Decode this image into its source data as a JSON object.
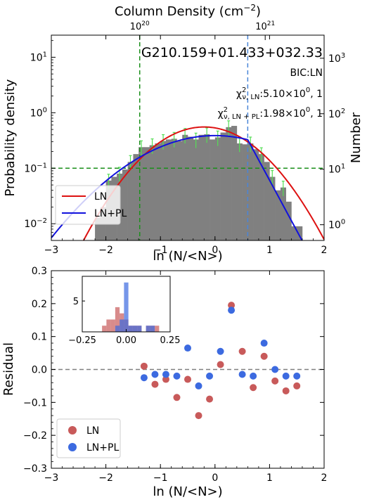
{
  "chart_data": [
    {
      "type": "histogram",
      "title": "G210.159+01.433+032.33",
      "xlabel": "ln (N/<N>)",
      "ylabel_left": "Probability density",
      "ylabel_right": "Number",
      "top_axis_label": "Column Density (cm$^{-2}$)",
      "top_ticks": [
        {
          "label": "10",
          "exp": "20",
          "x": -1.38
        },
        {
          "label": "10",
          "exp": "21",
          "x": 0.92
        }
      ],
      "xlim": [
        -3,
        2
      ],
      "ylim": [
        0.005,
        25
      ],
      "ylog": true,
      "x_ticks": [
        -3,
        -2,
        -1,
        0,
        1,
        2
      ],
      "x_tick_labels": [
        "−3",
        "−2",
        "−1",
        "0",
        "1",
        "2"
      ],
      "y_ticks_left": [
        {
          "v": 0.01,
          "base": "10",
          "exp": "−2"
        },
        {
          "v": 0.1,
          "base": "10",
          "exp": "−1"
        },
        {
          "v": 1,
          "base": "10",
          "exp": "0"
        },
        {
          "v": 10,
          "base": "10",
          "exp": "1"
        }
      ],
      "y_ticks_right": [
        {
          "v": 0.0096,
          "base": "10",
          "exp": "0"
        },
        {
          "v": 0.096,
          "base": "10",
          "exp": "1"
        },
        {
          "v": 0.96,
          "base": "10",
          "exp": "2"
        },
        {
          "v": 9.6,
          "base": "10",
          "exp": "3"
        }
      ],
      "bin_width": 0.1,
      "histogram": [
        {
          "x": -2.15,
          "y": 0.013
        },
        {
          "x": -2.05,
          "y": 0.02
        },
        {
          "x": -1.95,
          "y": 0.06
        },
        {
          "x": -1.85,
          "y": 0.07
        },
        {
          "x": -1.75,
          "y": 0.08
        },
        {
          "x": -1.65,
          "y": 0.095
        },
        {
          "x": -1.55,
          "y": 0.13
        },
        {
          "x": -1.45,
          "y": 0.18
        },
        {
          "x": -1.35,
          "y": 0.24
        },
        {
          "x": -1.25,
          "y": 0.24
        },
        {
          "x": -1.15,
          "y": 0.26
        },
        {
          "x": -1.05,
          "y": 0.28
        },
        {
          "x": -0.95,
          "y": 0.31
        },
        {
          "x": -0.85,
          "y": 0.33
        },
        {
          "x": -0.75,
          "y": 0.34
        },
        {
          "x": -0.65,
          "y": 0.31
        },
        {
          "x": -0.55,
          "y": 0.4
        },
        {
          "x": -0.45,
          "y": 0.37
        },
        {
          "x": -0.35,
          "y": 0.33
        },
        {
          "x": -0.25,
          "y": 0.4
        },
        {
          "x": -0.15,
          "y": 0.41
        },
        {
          "x": -0.05,
          "y": 0.33
        },
        {
          "x": 0.05,
          "y": 0.36
        },
        {
          "x": 0.15,
          "y": 0.44
        },
        {
          "x": 0.25,
          "y": 0.55
        },
        {
          "x": 0.35,
          "y": 0.58
        },
        {
          "x": 0.45,
          "y": 0.28
        },
        {
          "x": 0.55,
          "y": 0.27
        },
        {
          "x": 0.65,
          "y": 0.28
        },
        {
          "x": 0.75,
          "y": 0.22
        },
        {
          "x": 0.85,
          "y": 0.18
        },
        {
          "x": 0.95,
          "y": 0.13
        },
        {
          "x": 1.05,
          "y": 0.07
        },
        {
          "x": 1.15,
          "y": 0.04
        },
        {
          "x": 1.25,
          "y": 0.045
        },
        {
          "x": 1.35,
          "y": 0.025
        },
        {
          "x": 1.45,
          "y": 0.009
        },
        {
          "x": 1.55,
          "y": 0.009
        }
      ],
      "ln_fit": {
        "mu": -0.2,
        "sigma": 0.72
      },
      "lnpl_fit": {
        "mu": 0.0,
        "sigma": 1.03,
        "break_x": 0.6,
        "slope": -4.2
      },
      "vlines": [
        {
          "x": -1.38,
          "color": "#1a8f1a",
          "style": "dashed"
        },
        {
          "x": 0.6,
          "color": "#4a86d8",
          "style": "dashed"
        }
      ],
      "hline": {
        "y": 0.1,
        "color": "#1a8f1a",
        "style": "dashed"
      },
      "annotations": {
        "bic": "BIC:LN",
        "chi_ln_sub": "ν, LN",
        "chi_ln_value": ":5.10×10",
        "chi_ln_exp": "0",
        "chi_ln_tail": ", 1",
        "chi_lnpl_sub": "ν, LN + PL",
        "chi_lnpl_value": ":1.98×10",
        "chi_lnpl_exp": "0",
        "chi_lnpl_tail": ", 1"
      },
      "legend": {
        "placement": "lower-left",
        "entries": [
          {
            "label": "LN",
            "color": "#dd1111"
          },
          {
            "label": "LN+PL",
            "color": "#1111dd"
          }
        ]
      },
      "colors": {
        "bars": "#808080",
        "errorbars": "#55dd55",
        "ln": "#dd1111",
        "lnpl": "#1111dd"
      }
    },
    {
      "type": "scatter",
      "xlabel": "ln (N/<N>)",
      "ylabel": "Residual",
      "xlim": [
        -3,
        2
      ],
      "ylim": [
        -0.3,
        0.3
      ],
      "x_ticks": [
        -3,
        -2,
        -1,
        0,
        1,
        2
      ],
      "x_tick_labels": [
        "−3",
        "−2",
        "−1",
        "0",
        "1",
        "2"
      ],
      "y_ticks": [
        -0.3,
        -0.2,
        -0.1,
        0.0,
        0.1,
        0.2,
        0.3
      ],
      "y_tick_labels": [
        "−0.3",
        "−0.2",
        "−0.1",
        "0.0",
        "0.1",
        "0.2",
        "0.3"
      ],
      "zero_line": {
        "y": 0,
        "color": "#808080",
        "style": "dashed"
      },
      "series": [
        {
          "name": "LN",
          "color": "#c85a5a",
          "points": [
            [
              -1.3,
              0.01
            ],
            [
              -1.1,
              -0.045
            ],
            [
              -0.9,
              -0.03
            ],
            [
              -0.7,
              -0.085
            ],
            [
              -0.5,
              -0.03
            ],
            [
              -0.3,
              -0.14
            ],
            [
              -0.1,
              -0.09
            ],
            [
              0.1,
              0.015
            ],
            [
              0.3,
              0.195
            ],
            [
              0.5,
              0.055
            ],
            [
              0.7,
              -0.055
            ],
            [
              0.9,
              0.04
            ],
            [
              1.1,
              -0.035
            ],
            [
              1.3,
              -0.065
            ],
            [
              1.5,
              -0.05
            ]
          ]
        },
        {
          "name": "LN+PL",
          "color": "#3c6ae0",
          "points": [
            [
              -1.3,
              -0.025
            ],
            [
              -1.1,
              -0.015
            ],
            [
              -0.9,
              -0.015
            ],
            [
              -0.7,
              -0.02
            ],
            [
              -0.5,
              0.065
            ],
            [
              -0.3,
              -0.05
            ],
            [
              -0.1,
              -0.02
            ],
            [
              0.1,
              0.055
            ],
            [
              0.3,
              0.18
            ],
            [
              0.5,
              -0.015
            ],
            [
              0.7,
              -0.02
            ],
            [
              0.9,
              0.08
            ],
            [
              1.1,
              0.0
            ],
            [
              1.3,
              -0.02
            ],
            [
              1.5,
              -0.02
            ]
          ]
        }
      ],
      "legend": {
        "placement": "lower-left",
        "entries": [
          {
            "label": "LN",
            "color": "#c85a5a"
          },
          {
            "label": "LN+PL",
            "color": "#3c6ae0"
          }
        ]
      },
      "inset": {
        "type": "histogram",
        "placement": "top-left",
        "xlim": [
          -0.25,
          0.25
        ],
        "ylim": [
          0,
          9
        ],
        "x_ticks": [
          -0.25,
          0.0,
          0.25
        ],
        "x_tick_labels": [
          "−0.25",
          "0.00",
          "0.25"
        ],
        "y_ticks": [
          0,
          5
        ],
        "y_tick_labels": [
          "",
          "5"
        ],
        "bin_width": 0.025,
        "series": [
          {
            "name": "LN",
            "color": "#c85a5a",
            "bins": [
              {
                "x": -0.125,
                "n": 1
              },
              {
                "x": -0.1,
                "n": 2
              },
              {
                "x": -0.075,
                "n": 2
              },
              {
                "x": -0.05,
                "n": 4
              },
              {
                "x": -0.025,
                "n": 3
              },
              {
                "x": 0.0,
                "n": 2
              },
              {
                "x": 0.025,
                "n": 1
              },
              {
                "x": 0.05,
                "n": 1
              },
              {
                "x": 0.075,
                "n": 1
              },
              {
                "x": 0.125,
                "n": 1
              },
              {
                "x": 0.15,
                "n": 1
              },
              {
                "x": 0.175,
                "n": 1
              }
            ]
          },
          {
            "name": "LN+PL",
            "color": "#3c6ae0",
            "bins": [
              {
                "x": -0.05,
                "n": 1
              },
              {
                "x": -0.025,
                "n": 2
              },
              {
                "x": 0.0,
                "n": 8
              },
              {
                "x": 0.025,
                "n": 1
              },
              {
                "x": 0.05,
                "n": 1
              },
              {
                "x": 0.075,
                "n": 1
              },
              {
                "x": 0.125,
                "n": 1
              },
              {
                "x": 0.15,
                "n": 1
              }
            ]
          }
        ]
      }
    }
  ]
}
